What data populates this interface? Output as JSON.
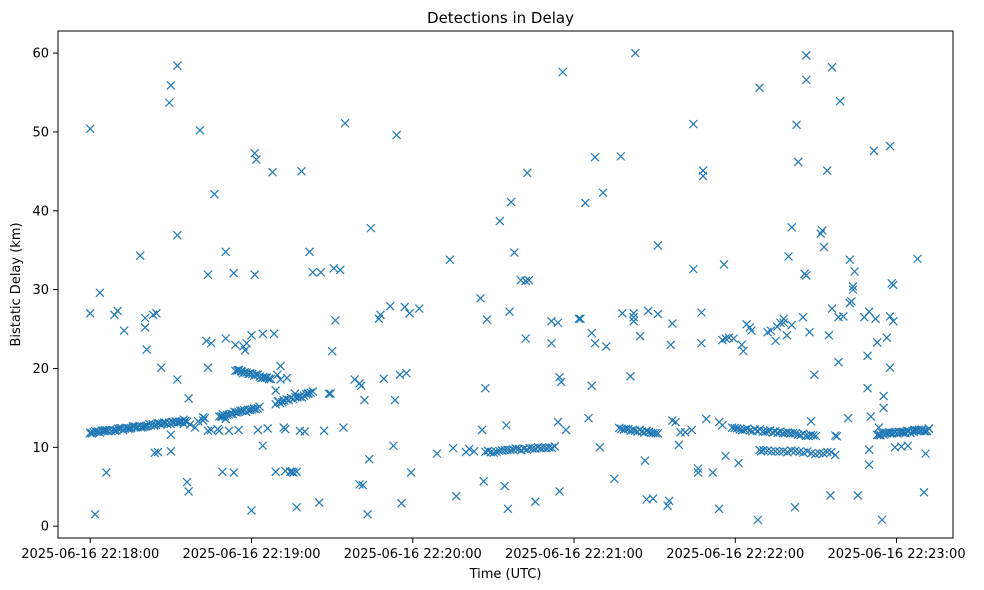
{
  "chart_data": {
    "type": "scatter",
    "title": "Detections in Delay",
    "xlabel": "Time (UTC)",
    "ylabel": "Bistatic Delay (km)",
    "marker": "x",
    "color": "#1f77b4",
    "xlim": [
      -0.2,
      5.35
    ],
    "ylim": [
      -1.5,
      62.8
    ],
    "x_unit": "minutes after 2025-06-16 22:18:00",
    "x_ticks": [
      {
        "value": 0,
        "label": "2025-06-16 22:18:00"
      },
      {
        "value": 1,
        "label": "2025-06-16 22:19:00"
      },
      {
        "value": 2,
        "label": "2025-06-16 22:20:00"
      },
      {
        "value": 3,
        "label": "2025-06-16 22:21:00"
      },
      {
        "value": 4,
        "label": "2025-06-16 22:22:00"
      },
      {
        "value": 5,
        "label": "2025-06-16 22:23:00"
      }
    ],
    "y_ticks": [
      {
        "value": 0,
        "label": "0"
      },
      {
        "value": 10,
        "label": "10"
      },
      {
        "value": 20,
        "label": "20"
      },
      {
        "value": 30,
        "label": "30"
      },
      {
        "value": 40,
        "label": "40"
      },
      {
        "value": 50,
        "label": "50"
      },
      {
        "value": 60,
        "label": "60"
      }
    ],
    "points": [
      [
        0.0,
        50.4
      ],
      [
        0.0,
        11.8
      ],
      [
        0.0,
        27.0
      ],
      [
        0.03,
        1.5
      ],
      [
        0.06,
        29.6
      ],
      [
        0.1,
        6.8
      ],
      [
        0.15,
        26.8
      ],
      [
        0.17,
        27.3
      ],
      [
        0.21,
        24.8
      ],
      [
        0.31,
        34.3
      ],
      [
        0.34,
        25.2
      ],
      [
        0.34,
        26.4
      ],
      [
        0.35,
        22.4
      ],
      [
        0.39,
        26.8
      ],
      [
        0.41,
        27.0
      ],
      [
        0.4,
        9.3
      ],
      [
        0.42,
        9.4
      ],
      [
        0.44,
        20.1
      ],
      [
        0.49,
        53.7
      ],
      [
        0.5,
        55.9
      ],
      [
        0.54,
        58.4
      ],
      [
        0.54,
        36.9
      ],
      [
        0.54,
        18.6
      ],
      [
        0.5,
        9.5
      ],
      [
        0.5,
        11.6
      ],
      [
        0.6,
        5.6
      ],
      [
        0.61,
        4.4
      ],
      [
        0.61,
        16.2
      ],
      [
        0.68,
        50.2
      ],
      [
        0.7,
        13.8
      ],
      [
        0.72,
        23.5
      ],
      [
        0.73,
        20.1
      ],
      [
        0.73,
        31.9
      ],
      [
        0.75,
        23.2
      ],
      [
        0.77,
        42.1
      ],
      [
        0.82,
        6.9
      ],
      [
        0.84,
        34.8
      ],
      [
        0.84,
        23.8
      ],
      [
        0.89,
        32.1
      ],
      [
        0.89,
        6.8
      ],
      [
        0.9,
        23.0
      ],
      [
        0.95,
        22.8
      ],
      [
        0.97,
        23.2
      ],
      [
        1.0,
        2.0
      ],
      [
        1.02,
        47.3
      ],
      [
        1.03,
        46.5
      ],
      [
        1.02,
        31.9
      ],
      [
        1.07,
        10.2
      ],
      [
        1.13,
        44.9
      ],
      [
        1.14,
        24.4
      ],
      [
        1.15,
        6.9
      ],
      [
        1.15,
        17.2
      ],
      [
        1.18,
        18.6
      ],
      [
        1.2,
        12.5
      ],
      [
        1.21,
        12.3
      ],
      [
        1.22,
        18.8
      ],
      [
        1.28,
        2.4
      ],
      [
        1.28,
        6.9
      ],
      [
        1.31,
        45.0
      ],
      [
        1.36,
        34.8
      ],
      [
        1.38,
        32.2
      ],
      [
        1.42,
        3.0
      ],
      [
        1.5,
        22.2
      ],
      [
        1.52,
        26.1
      ],
      [
        1.51,
        32.7
      ],
      [
        1.55,
        32.5
      ],
      [
        1.57,
        12.5
      ],
      [
        1.58,
        51.1
      ],
      [
        1.64,
        18.6
      ],
      [
        1.67,
        18.1
      ],
      [
        1.68,
        17.8
      ],
      [
        1.67,
        5.3
      ],
      [
        1.69,
        5.2
      ],
      [
        1.7,
        16.0
      ],
      [
        1.72,
        1.5
      ],
      [
        1.73,
        8.5
      ],
      [
        1.74,
        37.8
      ],
      [
        1.79,
        26.3
      ],
      [
        1.8,
        26.8
      ],
      [
        1.82,
        18.7
      ],
      [
        1.86,
        27.9
      ],
      [
        1.88,
        10.2
      ],
      [
        1.89,
        16.0
      ],
      [
        1.9,
        49.6
      ],
      [
        1.92,
        19.2
      ],
      [
        1.93,
        2.9
      ],
      [
        1.95,
        27.8
      ],
      [
        1.96,
        19.4
      ],
      [
        1.98,
        27.0
      ],
      [
        1.99,
        6.8
      ],
      [
        2.04,
        27.6
      ],
      [
        2.15,
        9.2
      ],
      [
        2.23,
        33.8
      ],
      [
        2.27,
        3.8
      ],
      [
        2.25,
        9.9
      ],
      [
        2.33,
        9.4
      ],
      [
        2.35,
        9.8
      ],
      [
        2.38,
        9.5
      ],
      [
        2.42,
        28.9
      ],
      [
        2.45,
        17.5
      ],
      [
        2.46,
        26.2
      ],
      [
        2.43,
        12.2
      ],
      [
        2.44,
        5.7
      ],
      [
        2.54,
        38.7
      ],
      [
        2.57,
        5.1
      ],
      [
        2.59,
        2.2
      ],
      [
        2.58,
        12.8
      ],
      [
        2.6,
        27.2
      ],
      [
        2.61,
        41.1
      ],
      [
        2.63,
        34.7
      ],
      [
        2.67,
        31.2
      ],
      [
        2.7,
        31.1
      ],
      [
        2.72,
        31.2
      ],
      [
        2.7,
        23.8
      ],
      [
        2.71,
        44.8
      ],
      [
        2.76,
        3.1
      ],
      [
        2.86,
        26.0
      ],
      [
        2.86,
        23.2
      ],
      [
        2.9,
        25.8
      ],
      [
        2.9,
        13.2
      ],
      [
        2.91,
        4.4
      ],
      [
        2.91,
        18.9
      ],
      [
        2.92,
        18.3
      ],
      [
        2.93,
        57.6
      ],
      [
        2.95,
        12.2
      ],
      [
        3.03,
        26.3
      ],
      [
        3.04,
        26.3
      ],
      [
        3.07,
        41.0
      ],
      [
        3.09,
        13.7
      ],
      [
        3.11,
        17.8
      ],
      [
        3.11,
        24.5
      ],
      [
        3.13,
        23.2
      ],
      [
        3.13,
        46.8
      ],
      [
        3.16,
        10.0
      ],
      [
        3.18,
        42.3
      ],
      [
        3.2,
        22.8
      ],
      [
        3.25,
        6.0
      ],
      [
        3.29,
        46.9
      ],
      [
        3.3,
        27.0
      ],
      [
        3.35,
        19.0
      ],
      [
        3.37,
        26.0
      ],
      [
        3.37,
        26.5
      ],
      [
        3.37,
        27.0
      ],
      [
        3.38,
        60.0
      ],
      [
        3.41,
        24.1
      ],
      [
        3.45,
        3.4
      ],
      [
        3.44,
        8.3
      ],
      [
        3.46,
        27.3
      ],
      [
        3.49,
        3.5
      ],
      [
        3.52,
        26.9
      ],
      [
        3.52,
        35.6
      ],
      [
        3.58,
        2.6
      ],
      [
        3.59,
        3.2
      ],
      [
        3.6,
        23.0
      ],
      [
        3.61,
        25.7
      ],
      [
        3.61,
        13.4
      ],
      [
        3.63,
        13.2
      ],
      [
        3.65,
        10.3
      ],
      [
        3.66,
        11.9
      ],
      [
        3.69,
        11.9
      ],
      [
        3.73,
        12.2
      ],
      [
        3.74,
        51.0
      ],
      [
        3.74,
        32.6
      ],
      [
        3.77,
        7.3
      ],
      [
        3.77,
        6.8
      ],
      [
        3.79,
        27.1
      ],
      [
        3.79,
        23.2
      ],
      [
        3.8,
        44.4
      ],
      [
        3.8,
        45.1
      ],
      [
        3.82,
        13.6
      ],
      [
        3.86,
        6.8
      ],
      [
        3.9,
        2.2
      ],
      [
        3.9,
        13.2
      ],
      [
        3.92,
        12.8
      ],
      [
        3.92,
        23.6
      ],
      [
        3.93,
        33.2
      ],
      [
        3.94,
        23.8
      ],
      [
        3.94,
        8.9
      ],
      [
        3.96,
        23.9
      ],
      [
        3.99,
        23.8
      ],
      [
        4.02,
        8.0
      ],
      [
        4.04,
        23.0
      ],
      [
        4.05,
        22.2
      ],
      [
        4.07,
        25.6
      ],
      [
        4.09,
        25.2
      ],
      [
        4.1,
        24.8
      ],
      [
        4.14,
        0.8
      ],
      [
        4.15,
        55.6
      ],
      [
        4.16,
        9.5
      ],
      [
        4.2,
        24.6
      ],
      [
        4.22,
        24.8
      ],
      [
        4.25,
        23.5
      ],
      [
        4.26,
        25.3
      ],
      [
        4.28,
        25.8
      ],
      [
        4.3,
        25.8
      ],
      [
        4.3,
        26.3
      ],
      [
        4.32,
        24.2
      ],
      [
        4.33,
        34.2
      ],
      [
        4.35,
        37.9
      ],
      [
        4.35,
        25.5
      ],
      [
        4.37,
        2.4
      ],
      [
        4.38,
        50.9
      ],
      [
        4.39,
        46.2
      ],
      [
        4.42,
        26.5
      ],
      [
        4.44,
        59.7
      ],
      [
        4.44,
        56.6
      ],
      [
        4.43,
        32.0
      ],
      [
        4.44,
        31.8
      ],
      [
        4.46,
        24.6
      ],
      [
        4.47,
        13.3
      ],
      [
        4.49,
        19.2
      ],
      [
        4.53,
        37.1
      ],
      [
        4.54,
        37.5
      ],
      [
        4.55,
        35.4
      ],
      [
        4.57,
        45.1
      ],
      [
        4.58,
        24.2
      ],
      [
        4.59,
        3.9
      ],
      [
        4.6,
        58.2
      ],
      [
        4.6,
        27.6
      ],
      [
        4.62,
        11.5
      ],
      [
        4.63,
        11.4
      ],
      [
        4.64,
        26.5
      ],
      [
        4.65,
        53.9
      ],
      [
        4.64,
        20.8
      ],
      [
        4.67,
        26.6
      ],
      [
        4.7,
        13.7
      ],
      [
        4.71,
        33.8
      ],
      [
        4.71,
        28.3
      ],
      [
        4.72,
        28.5
      ],
      [
        4.73,
        30.0
      ],
      [
        4.73,
        30.4
      ],
      [
        4.74,
        32.3
      ],
      [
        4.76,
        3.9
      ],
      [
        4.8,
        26.5
      ],
      [
        4.82,
        17.5
      ],
      [
        4.82,
        21.6
      ],
      [
        4.83,
        27.2
      ],
      [
        4.83,
        7.8
      ],
      [
        4.83,
        9.7
      ],
      [
        4.84,
        13.9
      ],
      [
        4.86,
        47.6
      ],
      [
        4.87,
        26.3
      ],
      [
        4.88,
        23.3
      ],
      [
        4.89,
        12.5
      ],
      [
        4.91,
        0.8
      ],
      [
        4.92,
        16.5
      ],
      [
        4.92,
        15.0
      ],
      [
        4.94,
        23.9
      ],
      [
        4.96,
        48.2
      ],
      [
        4.96,
        26.6
      ],
      [
        4.97,
        30.8
      ],
      [
        4.98,
        30.6
      ],
      [
        4.98,
        26.0
      ],
      [
        4.96,
        20.1
      ],
      [
        4.99,
        10.0
      ],
      [
        5.03,
        10.1
      ],
      [
        5.07,
        10.2
      ],
      [
        5.11,
        12.2
      ],
      [
        5.13,
        33.9
      ],
      [
        5.16,
        12.2
      ],
      [
        5.17,
        4.3
      ],
      [
        5.18,
        9.2
      ],
      [
        5.2,
        12.4
      ],
      [
        1.48,
        16.8
      ],
      [
        1.43,
        32.2
      ],
      [
        1.35,
        16.8
      ],
      [
        1.33,
        12.0
      ],
      [
        1.3,
        12.1
      ],
      [
        1.27,
        16.8
      ],
      [
        1.2,
        16.0
      ],
      [
        1.18,
        20.3
      ],
      [
        1.17,
        15.8
      ],
      [
        1.45,
        12.1
      ],
      [
        1.49,
        16.8
      ],
      [
        1.1,
        12.4
      ],
      [
        1.04,
        12.2
      ],
      [
        0.96,
        22.3
      ],
      [
        0.94,
        19.6
      ],
      [
        0.92,
        19.8
      ],
      [
        0.92,
        12.2
      ],
      [
        0.86,
        12.1
      ],
      [
        0.84,
        13.6
      ],
      [
        0.82,
        13.9
      ],
      [
        0.8,
        12.1
      ],
      [
        0.79,
        12.3
      ],
      [
        0.75,
        12.2
      ],
      [
        0.73,
        12.1
      ],
      [
        0.71,
        13.7
      ],
      [
        0.7,
        13.4
      ],
      [
        0.67,
        13.3
      ],
      [
        0.65,
        12.5
      ],
      [
        0.62,
        12.9
      ],
      [
        0.58,
        13.0
      ],
      [
        1.16,
        19.2
      ],
      [
        1.21,
        7.0
      ],
      [
        1.25,
        6.9
      ],
      [
        1.26,
        6.8
      ],
      [
        1.24,
        6.9
      ],
      [
        1.07,
        24.4
      ],
      [
        1.0,
        24.2
      ]
    ],
    "bands": [
      {
        "x": [
          0.0,
          0.6
        ],
        "y": [
          11.8,
          13.4
        ],
        "count": 60
      },
      {
        "x": [
          0.8,
          1.05
        ],
        "y": [
          14.0,
          15.0
        ],
        "count": 22
      },
      {
        "x": [
          0.9,
          1.12
        ],
        "y": [
          19.8,
          18.6
        ],
        "count": 20
      },
      {
        "x": [
          1.15,
          1.38
        ],
        "y": [
          15.6,
          16.9
        ],
        "count": 18
      },
      {
        "x": [
          2.45,
          2.88
        ],
        "y": [
          9.4,
          10.1
        ],
        "count": 26
      },
      {
        "x": [
          3.28,
          3.52
        ],
        "y": [
          12.3,
          11.9
        ],
        "count": 18
      },
      {
        "x": [
          3.98,
          4.5
        ],
        "y": [
          12.4,
          11.5
        ],
        "count": 34
      },
      {
        "x": [
          4.15,
          4.62
        ],
        "y": [
          9.6,
          9.2
        ],
        "count": 20
      },
      {
        "x": [
          4.88,
          5.2
        ],
        "y": [
          11.6,
          12.2
        ],
        "count": 32
      }
    ]
  }
}
